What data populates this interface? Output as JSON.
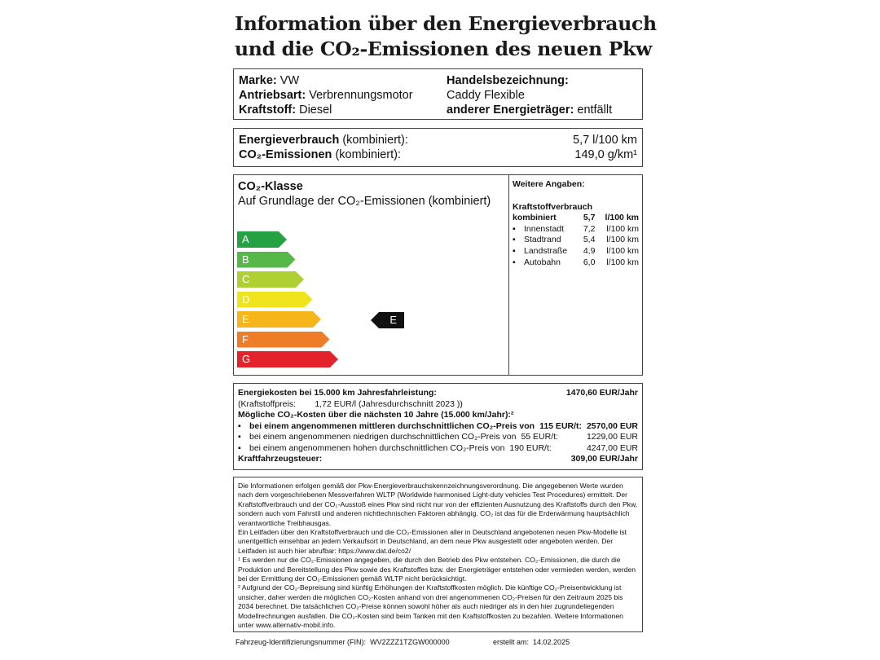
{
  "title": {
    "line1": "Information über den Energieverbrauch",
    "line2": "und die CO₂-Emissionen des neuen Pkw"
  },
  "vehicle": {
    "marke_label": "Marke:",
    "marke": "VW",
    "antrieb_label": "Antriebsart:",
    "antrieb": "Verbrennungsmotor",
    "kraftstoff_label": "Kraftstoff:",
    "kraftstoff": "Diesel",
    "handel_label": "Handelsbezeichnung:",
    "handel": "Caddy Flexible",
    "anderer_label": "anderer Energieträger:",
    "anderer": "entfällt"
  },
  "consumption": {
    "energie_label": "Energieverbrauch",
    "energie_suffix": "(kombiniert):",
    "energie_value": "5,7 l/100 km",
    "co2_label": "CO₂-Emissionen",
    "co2_suffix": "(kombiniert):",
    "co2_value": "149,0 g/km¹"
  },
  "co2_class": {
    "title": "CO₂-Klasse",
    "subtitle": "Auf Grundlage der CO₂-Emissionen (kombiniert)",
    "current": "E",
    "classes": [
      {
        "label": "A",
        "color": "#26a244"
      },
      {
        "label": "B",
        "color": "#56b947"
      },
      {
        "label": "C",
        "color": "#afd033"
      },
      {
        "label": "D",
        "color": "#f0e41c"
      },
      {
        "label": "E",
        "color": "#f6b51b"
      },
      {
        "label": "F",
        "color": "#ef7d28"
      },
      {
        "label": "G",
        "color": "#e4222c"
      }
    ]
  },
  "weitere": {
    "title": "Weitere Angaben:",
    "heading": "Kraftstoffverbrauch",
    "kombiniert_label": "kombiniert",
    "kombiniert_value": "5,7",
    "unit": "l/100 km",
    "items": [
      {
        "label": "Innenstadt",
        "value": "7,2"
      },
      {
        "label": "Stadtrand",
        "value": "5,4"
      },
      {
        "label": "Landstraße",
        "value": "4,9"
      },
      {
        "label": "Autobahn",
        "value": "6,0"
      }
    ]
  },
  "costs": {
    "energie_label": "Energiekosten bei 15.000 km Jahresfahrleistung:",
    "energie_value": "1470,60 EUR/Jahr",
    "preis_label": "(Kraftstoffpreis:",
    "preis_value": "1,72 EUR/l (Jahresdurchschnitt  2023 ))",
    "co2_heading": "Mögliche CO₂-Kosten über die nächsten 10 Jahre (15.000 km/Jahr):²",
    "rows": [
      {
        "label": "bei einem angenommenen mittleren durchschnittlichen CO₂-Preis von",
        "price": "115  EUR/t:",
        "value": "2570,00 EUR"
      },
      {
        "label": "bei einem angenommenen niedrigen durchschnittlichen CO₂-Preis von",
        "price": "55  EUR/t:",
        "value": "1229,00 EUR"
      },
      {
        "label": "bei einem angenommenen hohen durchschnittlichen CO₂-Preis von",
        "price": "190  EUR/t:",
        "value": "4247,00 EUR"
      }
    ],
    "steuer_label": "Kraftfahrzeugsteuer:",
    "steuer_value": "309,00 EUR/Jahr"
  },
  "notes": [
    "Die Informationen erfolgen gemäß der Pkw-Energieverbrauchskennzeichnungsverordnung. Die angegebenen Werte wurden nach dem vorgeschriebenen Messverfahren WLTP (Worldwide harmonised Light-duty vehicles Test Procedures) ermittelt. Der Kraftstoffverbrauch und der CO₂-Ausstoß eines Pkw sind nicht nur von der effizienten Ausnutzung des Kraftstoffs durch den Pkw, sondern auch vom Fahrstil und anderen nichttechnischen Faktoren abhängig. CO₂ ist das für die Erderwärmung hauptsächlich verantwortliche Treibhausgas.",
    "Ein Leitfaden über den Kraftstoffverbrauch und die CO₂-Emissionen aller in Deutschland angebotenen neuen Pkw-Modelle ist unentgeltlich einsehbar an jedem Verkaufsort in Deutschland, an dem neue Pkw ausgestellt oder angeboten werden. Der Leitfaden ist auch hier abrufbar:   https://www.dat.de/co2/",
    "¹ Es werden nur die CO₂-Emissionen angegeben, die durch den Betrieb des Pkw entstehen. CO₂-Emissionen, die durch die Produktion und Bereitstellung des Pkw sowie des Kraftstoffes bzw. der Energieträger entstehen oder vermieden werden, werden bei der Ermittlung der CO₂-Emissionen gemäß WLTP nicht berücksichtigt.",
    "² Aufgrund der CO₂-Bepreisung sind künftig Erhöhungen der Kraftstoffkosten möglich. Die künftige CO₂-Preisentwicklung ist unsicher, daher werden die möglichen CO₂-Kosten anhand von drei angenommenen CO₂-Preisen für den Zeitraum  2025  bis  2034  berechnet. Die tatsächlichen CO₂-Preise können sowohl höher als auch niedriger als in den hier zugrundeliegenden Modellrechnungen ausfallen. Die CO₂-Kosten sind beim Tanken mit den Kraftstoffkosten zu bezahlen. Weitere Informationen unter www.alternativ-mobil.info."
  ],
  "footer": {
    "fin_label": "Fahrzeug-Identifizierungsnummer (FIN):",
    "fin": "WV2ZZZ1TZGW000000",
    "date_label": "erstellt am:",
    "date": "14.02.2025"
  }
}
